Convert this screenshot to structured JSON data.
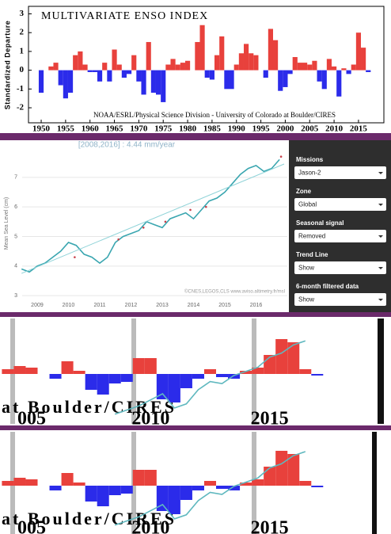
{
  "chart_data": [
    {
      "type": "bar",
      "title": "MULTIVARIATE ENSO INDEX",
      "y_label": "Standardized Departure",
      "annotation": "NOAA/ESRL/Physical Science Division - University of Colorado at Boulder/CIRES",
      "colors": {
        "positive": "#e8413c",
        "negative": "#2b2bea"
      },
      "xlim": [
        1947.4,
        2020.2
      ],
      "ylim": [
        -2.8,
        3.4
      ],
      "xticks": [
        1950,
        1955,
        1960,
        1965,
        1970,
        1975,
        1980,
        1985,
        1990,
        1995,
        2000,
        2005,
        2010,
        2015
      ],
      "yticks": [
        -2,
        -1,
        0,
        1,
        2,
        3
      ],
      "grid": false,
      "series": [
        {
          "x": [
            1950,
            1951,
            1952,
            1953,
            1954,
            1955,
            1956,
            1957,
            1958,
            1959,
            1960,
            1961,
            1962,
            1963,
            1964,
            1965,
            1966,
            1967,
            1968,
            1969,
            1970,
            1971,
            1972,
            1973,
            1974,
            1975,
            1976,
            1977,
            1978,
            1979,
            1980,
            1981,
            1982,
            1983,
            1984,
            1985,
            1986,
            1987,
            1988,
            1989,
            1990,
            1991,
            1992,
            1993,
            1994,
            1995,
            1996,
            1997,
            1998,
            1999,
            2000,
            2001,
            2002,
            2003,
            2004,
            2005,
            2006,
            2007,
            2008,
            2009,
            2010,
            2011,
            2012,
            2013,
            2014,
            2015,
            2016,
            2017
          ],
          "values": [
            -1.2,
            0.0,
            0.2,
            0.4,
            -0.8,
            -1.5,
            -1.2,
            0.8,
            1.0,
            0.3,
            -0.1,
            -0.1,
            -0.6,
            0.4,
            -0.6,
            1.1,
            0.3,
            -0.4,
            -0.2,
            0.8,
            -0.6,
            -1.3,
            1.5,
            -1.2,
            -1.3,
            -1.7,
            0.3,
            0.6,
            0.3,
            0.4,
            0.5,
            0.0,
            1.5,
            2.4,
            -0.4,
            -0.5,
            0.8,
            1.8,
            -1.0,
            -1.0,
            0.3,
            0.9,
            1.4,
            0.9,
            0.8,
            0.0,
            -0.4,
            2.2,
            1.6,
            -1.1,
            -0.9,
            -0.2,
            0.7,
            0.4,
            0.4,
            0.3,
            0.5,
            -0.6,
            -1.0,
            0.6,
            0.2,
            -1.4,
            0.1,
            -0.2,
            0.3,
            2.0,
            1.2,
            -0.1
          ]
        }
      ]
    },
    {
      "type": "line",
      "title": "[2008,2016] : 4.44 mm/year",
      "y_label": "Mean Sea Level (cm)",
      "annotation": "©CNES,LEGOS,CLS www.aviso.altimetry.fr/msl",
      "xlim": [
        2008.52,
        2017.0
      ],
      "ylim": [
        2.87,
        8.04
      ],
      "xticks": [
        2009,
        2010,
        2011,
        2012,
        2013,
        2014,
        2015,
        2016
      ],
      "yticks": [
        3,
        4,
        5,
        6,
        7
      ],
      "grid": true,
      "series": [
        {
          "color": "#3aa6b0",
          "x": [
            2008.5,
            2008.75,
            2009,
            2009.25,
            2009.5,
            2009.75,
            2010,
            2010.25,
            2010.5,
            2010.75,
            2011,
            2011.25,
            2011.5,
            2011.75,
            2012,
            2012.25,
            2012.5,
            2012.75,
            2013,
            2013.25,
            2013.5,
            2013.75,
            2014,
            2014.25,
            2014.5,
            2014.75,
            2015,
            2015.25,
            2015.5,
            2015.75,
            2016,
            2016.25,
            2016.5,
            2016.75
          ],
          "values": [
            3.9,
            3.8,
            4.0,
            4.1,
            4.3,
            4.5,
            4.8,
            4.7,
            4.4,
            4.3,
            4.1,
            4.3,
            4.8,
            5.0,
            5.1,
            5.2,
            5.5,
            5.4,
            5.3,
            5.6,
            5.7,
            5.8,
            5.6,
            5.9,
            6.2,
            6.3,
            6.5,
            6.8,
            7.1,
            7.3,
            7.4,
            7.2,
            7.3,
            7.6
          ]
        },
        {
          "color": "#8fd3d8",
          "x": [
            2008.5,
            2016.9
          ],
          "values": [
            3.75,
            7.45
          ]
        },
        {
          "type": "scatter",
          "color": "#c8404a",
          "x": [
            2010.2,
            2011.6,
            2012.4,
            2013.1,
            2013.9,
            2014.4,
            2016.8
          ],
          "values": [
            4.3,
            4.9,
            5.3,
            5.5,
            5.9,
            6.0,
            7.7
          ]
        }
      ]
    },
    {
      "type": "bar",
      "annotation": "at Boulder/CIRES",
      "colors": {
        "positive": "#e8413c",
        "negative": "#2b2bea"
      },
      "xlim": [
        2003.67,
        2020.1
      ],
      "ylim": [
        -3.15,
        3.5
      ],
      "y2lim": [
        3.42,
        8.6
      ],
      "xticks": [
        {
          "value": 2005,
          "label": "005"
        },
        2010,
        2015
      ],
      "series": [
        {
          "x": [
            2004,
            2004.5,
            2005,
            2005.5,
            2006,
            2006.5,
            2007,
            2007.5,
            2008,
            2008.5,
            2009,
            2009.5,
            2010,
            2010.5,
            2011,
            2011.5,
            2012,
            2012.5,
            2013,
            2013.5,
            2014,
            2014.5,
            2015,
            2015.5,
            2016,
            2016.5,
            2017
          ],
          "values": [
            0.3,
            0.5,
            0.4,
            0.0,
            -0.3,
            0.8,
            0.2,
            -1.0,
            -1.3,
            -0.6,
            -0.5,
            1.0,
            1.0,
            -1.6,
            -1.8,
            -0.9,
            -0.3,
            0.3,
            -0.2,
            -0.3,
            0.2,
            0.4,
            1.2,
            2.2,
            2.0,
            0.3,
            -0.1
          ]
        },
        {
          "axis": "y2",
          "color": "#5fb8bf",
          "x": [
            2008.5,
            2009,
            2009.5,
            2010,
            2010.5,
            2011,
            2011.5,
            2012,
            2012.5,
            2013,
            2013.5,
            2014,
            2014.5,
            2015,
            2015.5,
            2016,
            2016.5
          ],
          "values": [
            3.9,
            4.1,
            4.3,
            4.6,
            4.9,
            4.2,
            4.4,
            5.1,
            5.5,
            5.4,
            5.8,
            6.0,
            6.2,
            6.7,
            6.9,
            7.3,
            7.5
          ]
        }
      ]
    },
    {
      "type": "bar",
      "annotation": "at Boulder/CIRES",
      "colors": {
        "positive": "#e8413c",
        "negative": "#2b2bea"
      },
      "xlim": [
        2003.67,
        2020.1
      ],
      "ylim": [
        -3.05,
        3.4
      ],
      "y2lim": [
        3.46,
        8.47
      ],
      "xticks": [
        {
          "value": 2005,
          "label": "005"
        },
        2010,
        2015
      ],
      "series": [
        {
          "x": [
            2004,
            2004.5,
            2005,
            2005.5,
            2006,
            2006.5,
            2007,
            2007.5,
            2008,
            2008.5,
            2009,
            2009.5,
            2010,
            2010.5,
            2011,
            2011.5,
            2012,
            2012.5,
            2013,
            2013.5,
            2014,
            2014.5,
            2015,
            2015.5,
            2016,
            2016.5,
            2017
          ],
          "values": [
            0.3,
            0.5,
            0.4,
            0.0,
            -0.3,
            0.8,
            0.2,
            -1.0,
            -1.3,
            -0.6,
            -0.5,
            1.0,
            1.0,
            -1.6,
            -1.8,
            -0.9,
            -0.3,
            0.3,
            -0.2,
            -0.3,
            0.2,
            0.4,
            1.2,
            2.2,
            2.0,
            0.3,
            -0.1
          ]
        },
        {
          "axis": "y2",
          "color": "#5fb8bf",
          "x": [
            2008.5,
            2009,
            2009.5,
            2010,
            2010.5,
            2011,
            2011.5,
            2012,
            2012.5,
            2013,
            2013.5,
            2014,
            2014.5,
            2015,
            2015.5,
            2016,
            2016.5
          ],
          "values": [
            3.9,
            4.1,
            4.3,
            4.6,
            4.9,
            4.2,
            4.4,
            5.1,
            5.5,
            5.4,
            5.8,
            6.0,
            6.2,
            6.7,
            6.9,
            7.3,
            7.5
          ]
        }
      ]
    }
  ],
  "controls": [
    {
      "label": "Missions",
      "value": "Jason-2"
    },
    {
      "label": "Zone",
      "value": "Global"
    },
    {
      "label": "Seasonal signal",
      "value": "Removed"
    },
    {
      "label": "Trend Line",
      "value": "Show"
    },
    {
      "label": "6-month filtered data",
      "value": "Show"
    }
  ]
}
